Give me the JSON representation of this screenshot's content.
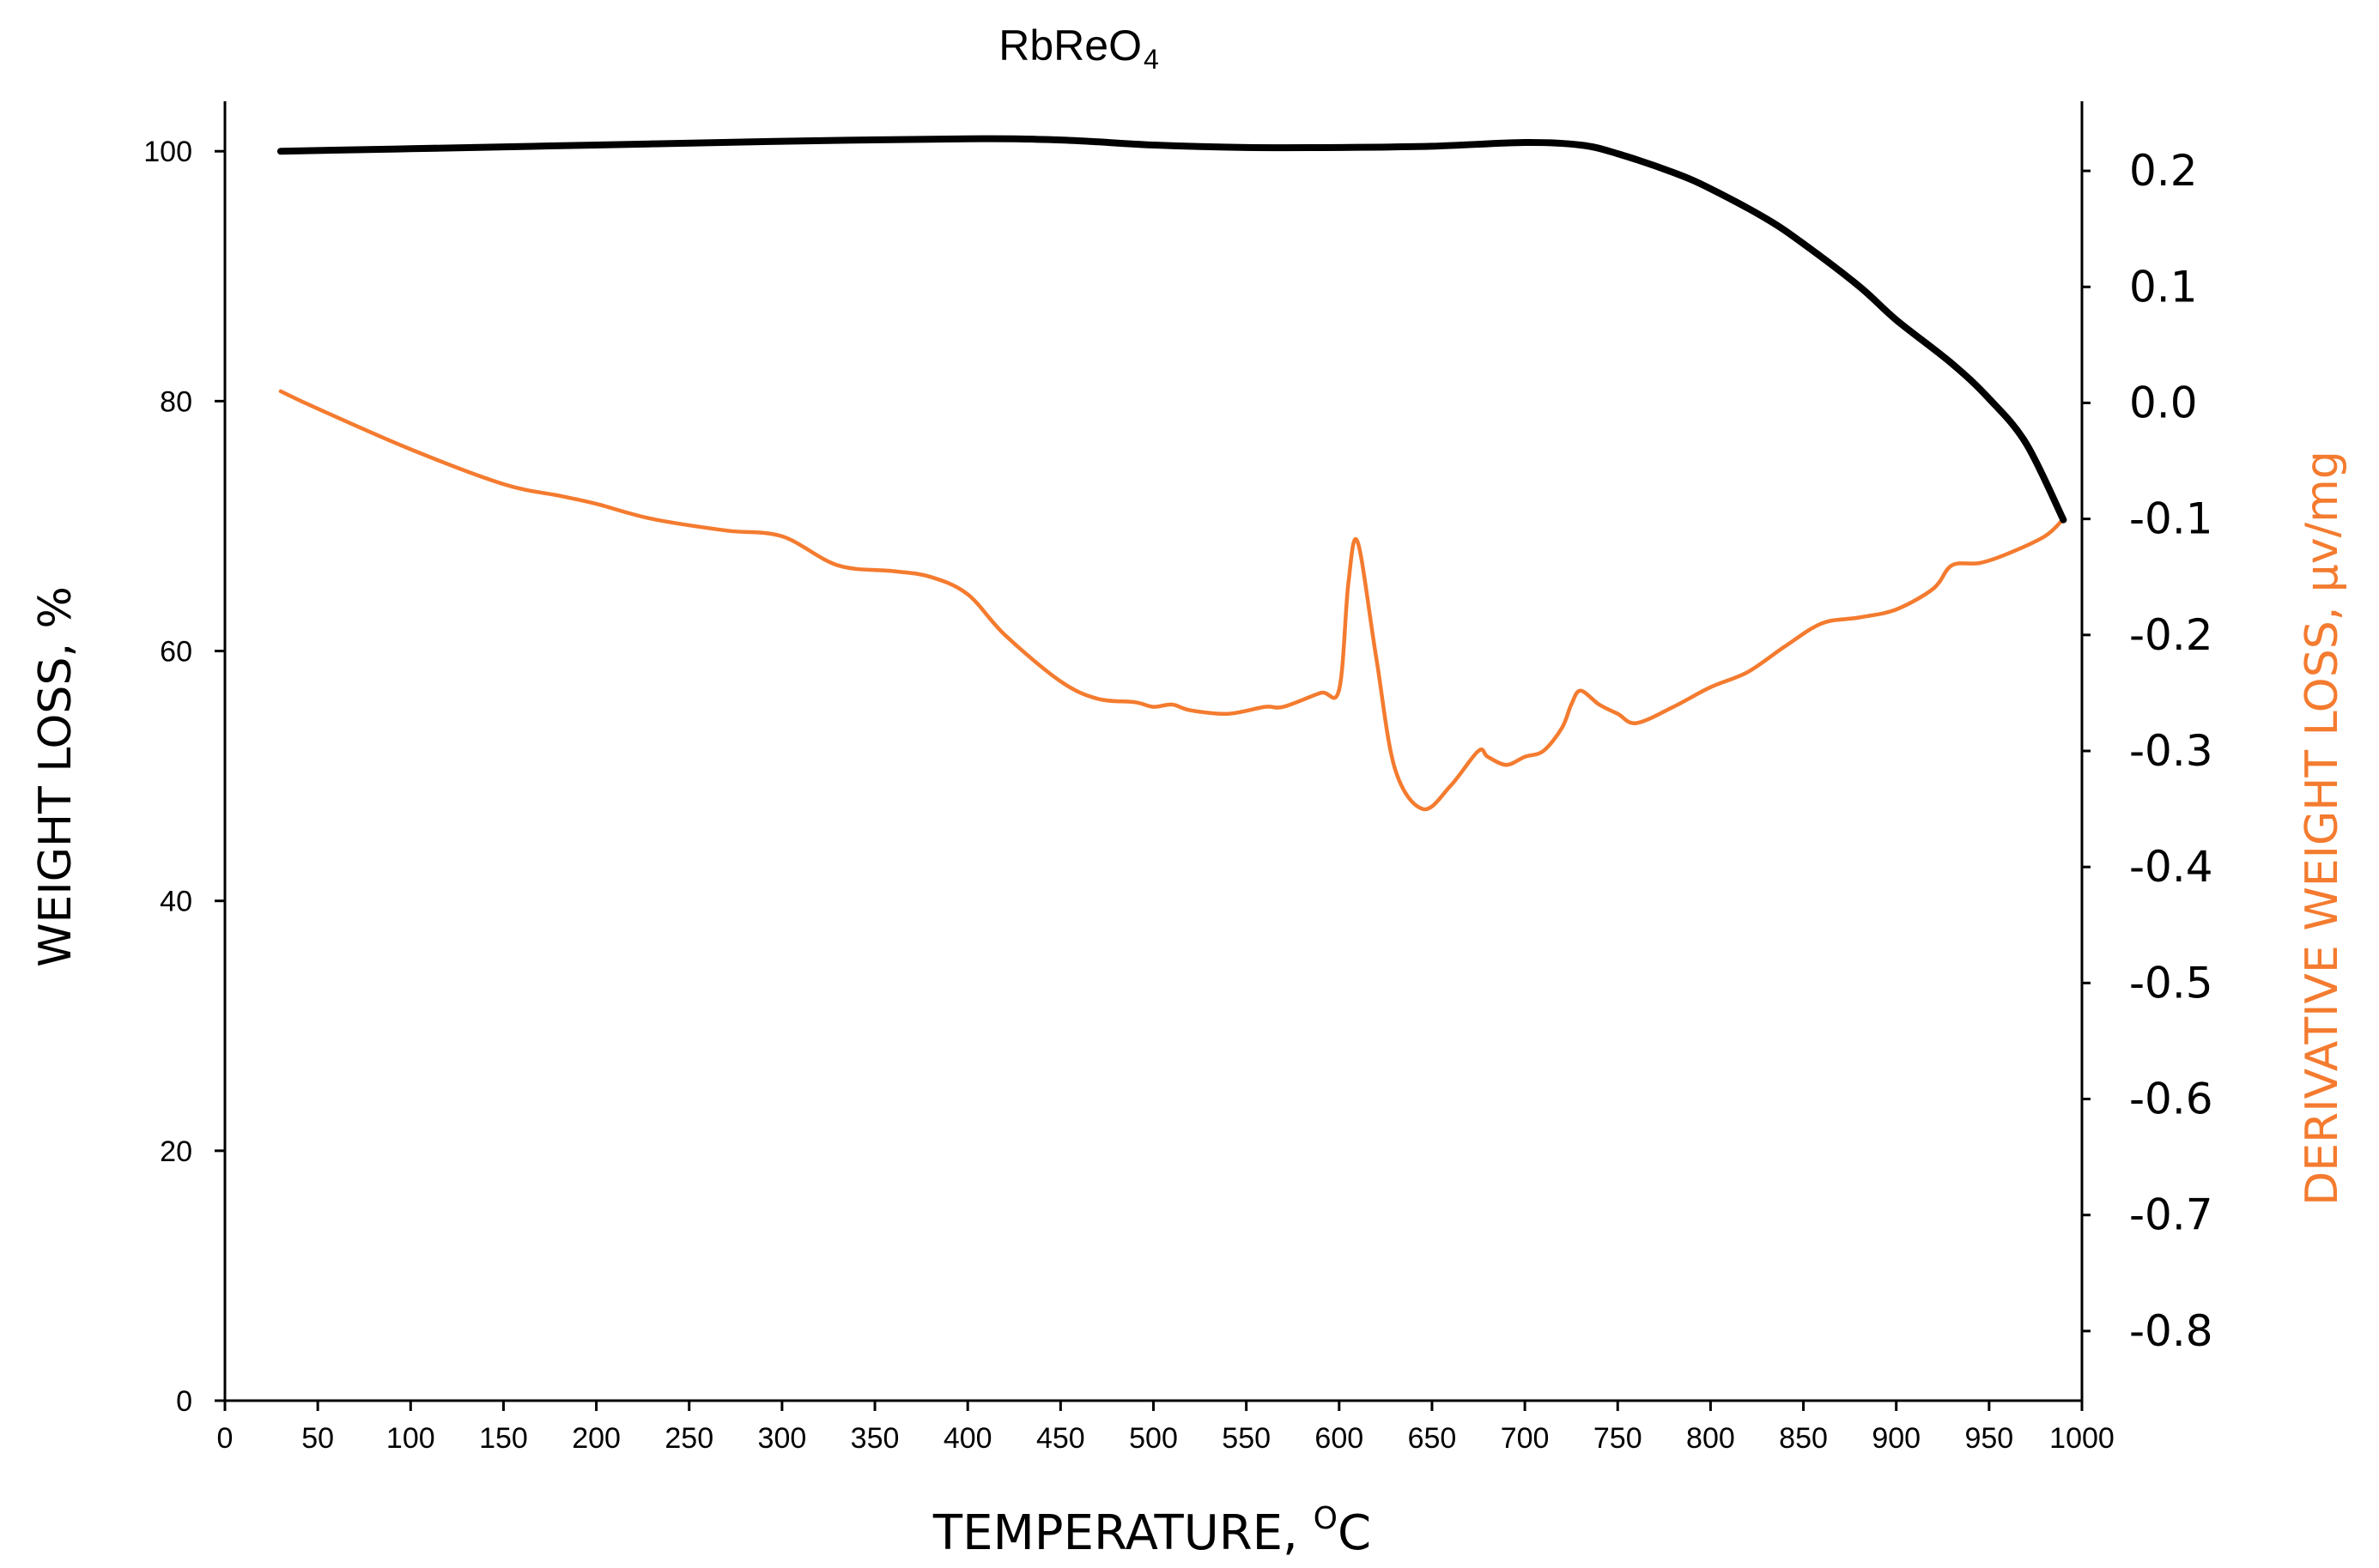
{
  "chart_data": {
    "type": "line",
    "title": {
      "main": "RbReO",
      "subscript": "4"
    },
    "xlabel": {
      "text": "TEMPERATURE, ",
      "superscript": "O",
      "unit": "C"
    },
    "ylabel_left": "WEIGHT LOSS, %",
    "ylabel_right": "DERIVATIVE WEIGHT LOSS, µv/mg",
    "right_axis_color": "#f47b2f",
    "xlim": [
      0,
      1000
    ],
    "ylim_left": [
      0,
      104
    ],
    "ylim_right": [
      -0.86,
      0.26
    ],
    "x_ticks": [
      "0",
      "50",
      "100",
      "150",
      "200",
      "250",
      "300",
      "350",
      "400",
      "450",
      "500",
      "550",
      "600",
      "650",
      "700",
      "750",
      "800",
      "850",
      "900",
      "950",
      "1000"
    ],
    "y_left_ticks": [
      "0",
      "20",
      "40",
      "60",
      "80",
      "100"
    ],
    "y_right_ticks": [
      "0.2",
      "0.1",
      "0.0",
      "-0.1",
      "-0.2",
      "-0.3",
      "-0.4",
      "-0.5",
      "-0.6",
      "-0.7",
      "-0.8"
    ],
    "series": [
      {
        "name": "Weight loss",
        "axis": "left",
        "color": "#000000",
        "x": [
          30,
          100,
          200,
          300,
          400,
          450,
          500,
          550,
          600,
          650,
          700,
          730,
          750,
          780,
          800,
          830,
          850,
          880,
          900,
          930,
          950,
          970,
          990
        ],
        "y": [
          100,
          100.2,
          100.5,
          100.8,
          101,
          100.9,
          100.5,
          100.3,
          100.3,
          100.4,
          100.7,
          100.5,
          99.8,
          98.3,
          97,
          94.6,
          92.6,
          89.2,
          86.5,
          83,
          80.2,
          76.6,
          70.5
        ]
      },
      {
        "name": "Derivative weight loss",
        "axis": "right",
        "color": "#f47b2f",
        "x": [
          30,
          50,
          100,
          150,
          180,
          200,
          230,
          270,
          300,
          330,
          360,
          380,
          400,
          420,
          450,
          470,
          490,
          500,
          510,
          520,
          540,
          560,
          570,
          590,
          600,
          605,
          610,
          620,
          630,
          645,
          660,
          675,
          680,
          690,
          700,
          710,
          720,
          725,
          730,
          740,
          750,
          760,
          780,
          800,
          820,
          840,
          860,
          880,
          900,
          920,
          930,
          945,
          960,
          980,
          990
        ],
        "y": [
          0.01,
          -0.005,
          -0.04,
          -0.07,
          -0.08,
          -0.087,
          -0.1,
          -0.11,
          -0.115,
          -0.14,
          -0.145,
          -0.15,
          -0.165,
          -0.2,
          -0.24,
          -0.255,
          -0.258,
          -0.262,
          -0.26,
          -0.265,
          -0.268,
          -0.262,
          -0.262,
          -0.25,
          -0.247,
          -0.155,
          -0.12,
          -0.22,
          -0.315,
          -0.35,
          -0.33,
          -0.3,
          -0.305,
          -0.312,
          -0.305,
          -0.3,
          -0.28,
          -0.26,
          -0.248,
          -0.26,
          -0.268,
          -0.276,
          -0.262,
          -0.245,
          -0.232,
          -0.21,
          -0.19,
          -0.185,
          -0.178,
          -0.16,
          -0.14,
          -0.138,
          -0.13,
          -0.115,
          -0.1
        ]
      }
    ]
  }
}
